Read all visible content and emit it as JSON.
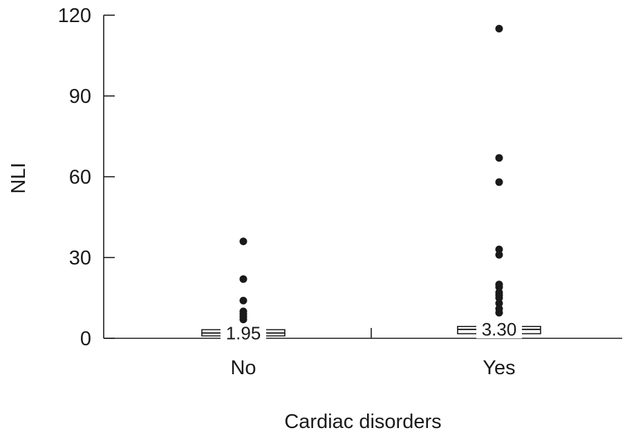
{
  "chart_data": {
    "type": "boxplot",
    "title": "",
    "xlabel": "Cardiac disorders",
    "ylabel": "NLI",
    "ylim": [
      0,
      120
    ],
    "yticks": [
      0,
      30,
      60,
      90,
      120
    ],
    "categories": [
      "No",
      "Yes"
    ],
    "grid": false,
    "legend": "none",
    "groups": [
      {
        "label": "No",
        "median": 1.95,
        "median_label": "1.95",
        "box": {
          "q1": 0.9,
          "q3": 3.2
        },
        "outliers": [
          7,
          8,
          9,
          10,
          14,
          22,
          36
        ]
      },
      {
        "label": "Yes",
        "median": 3.3,
        "median_label": "3.30",
        "box": {
          "q1": 1.7,
          "q3": 4.4
        },
        "outliers": [
          9.5,
          11,
          13,
          15,
          16,
          17,
          19,
          20,
          31,
          33,
          58,
          67,
          115
        ]
      }
    ],
    "colors": {
      "stroke": "#1a1a1a",
      "box_fill": "#ffffff",
      "point_fill": "#1a1a1a",
      "background": "#ffffff"
    }
  }
}
